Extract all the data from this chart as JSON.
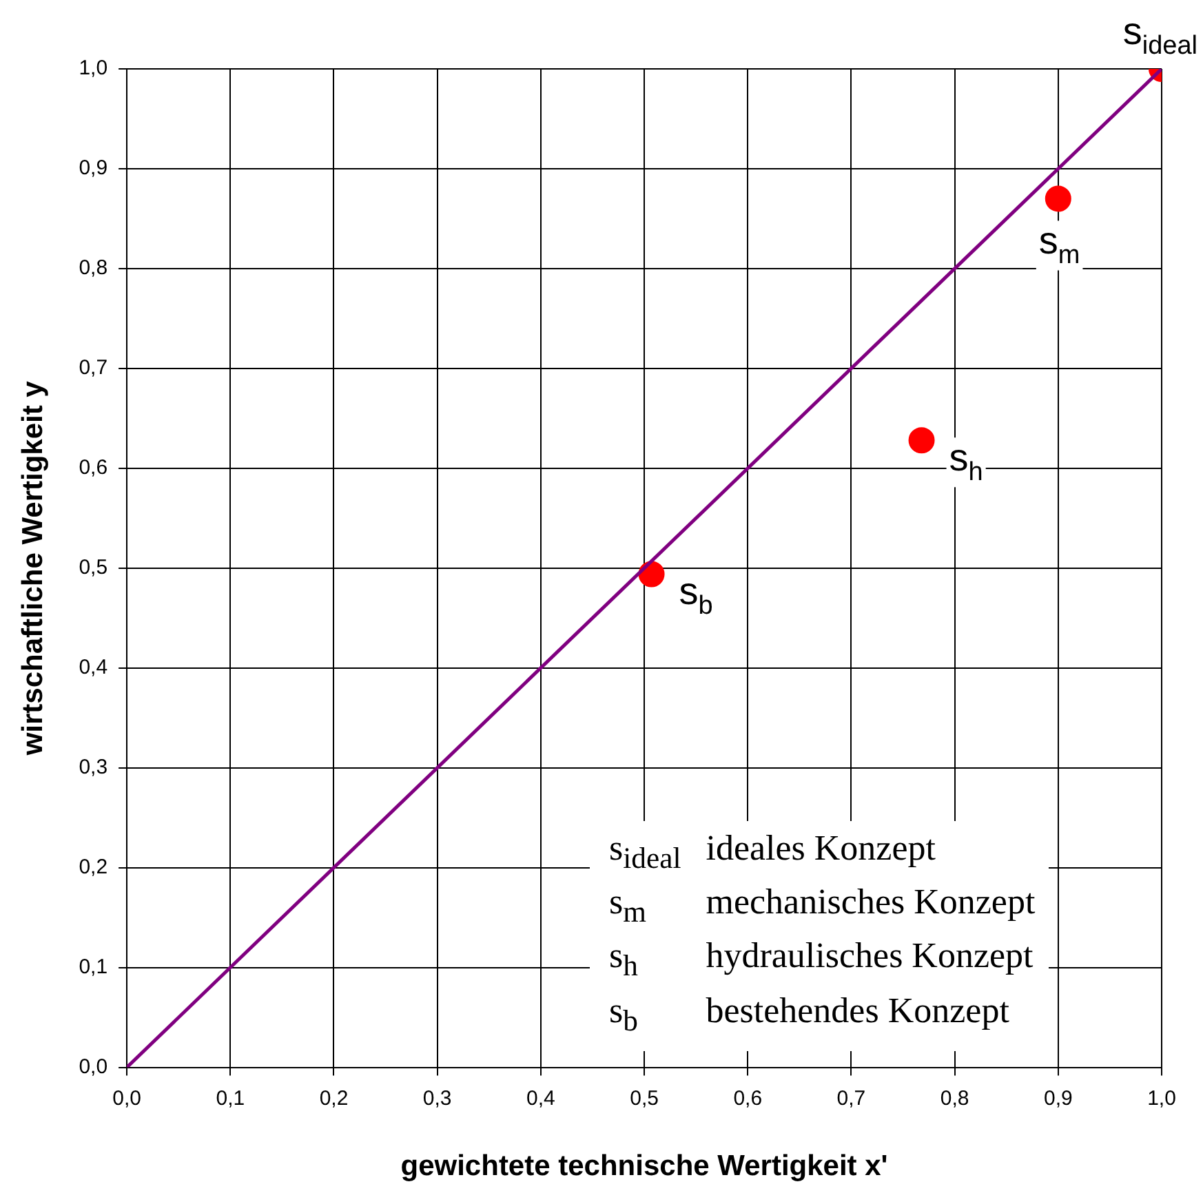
{
  "chart_data": {
    "type": "scatter",
    "xlabel": "gewichtete technische Wertigkeit x'",
    "ylabel": "wirtschaftliche Wertigkeit y",
    "xlim": [
      0,
      1
    ],
    "ylim": [
      0,
      1
    ],
    "xticks": [
      {
        "value": 0,
        "label": "0,0"
      },
      {
        "value": 0.1,
        "label": "0,1"
      },
      {
        "value": 0.2,
        "label": "0,2"
      },
      {
        "value": 0.3,
        "label": "0,3"
      },
      {
        "value": 0.4,
        "label": "0,4"
      },
      {
        "value": 0.5,
        "label": "0,5"
      },
      {
        "value": 0.6,
        "label": "0,6"
      },
      {
        "value": 0.7,
        "label": "0,7"
      },
      {
        "value": 0.8,
        "label": "0,8"
      },
      {
        "value": 0.9,
        "label": "0,9"
      },
      {
        "value": 1,
        "label": "1,0"
      }
    ],
    "yticks": [
      {
        "value": 0,
        "label": "0,0"
      },
      {
        "value": 0.1,
        "label": "0,1"
      },
      {
        "value": 0.2,
        "label": "0,2"
      },
      {
        "value": 0.3,
        "label": "0,3"
      },
      {
        "value": 0.4,
        "label": "0,4"
      },
      {
        "value": 0.5,
        "label": "0,5"
      },
      {
        "value": 0.6,
        "label": "0,6"
      },
      {
        "value": 0.7,
        "label": "0,7"
      },
      {
        "value": 0.8,
        "label": "0,8"
      },
      {
        "value": 0.9,
        "label": "0,9"
      },
      {
        "value": 1,
        "label": "1,0"
      }
    ],
    "grid": true,
    "legend": false,
    "series": [
      {
        "type": "line",
        "color": "#800080",
        "x": [
          0,
          1
        ],
        "values": [
          0,
          1
        ],
        "marker": "none"
      },
      {
        "color": "#ff0000",
        "x": [
          1,
          0.9,
          0.768,
          0.507
        ],
        "values": [
          1,
          0.87,
          0.628,
          0.494
        ],
        "marker": "circle"
      }
    ],
    "annotations": [
      {
        "text": "s$_{ideal}$",
        "x": 1,
        "y": 1
      },
      {
        "text": "s$_{m}$",
        "x": 0.9,
        "y": 0.87
      },
      {
        "text": "s$_{h}$",
        "x": 0.768,
        "y": 0.628
      },
      {
        "text": "s$_{b}$",
        "x": 0.507,
        "y": 0.494
      },
      "s$_{ideal}$ ideales Konzept",
      "s$_{m}$ mechanisches Konzept",
      "s$_{h}$ hydraulisches Konzept",
      "s$_{b}$ bestehendes Konzept"
    ]
  }
}
